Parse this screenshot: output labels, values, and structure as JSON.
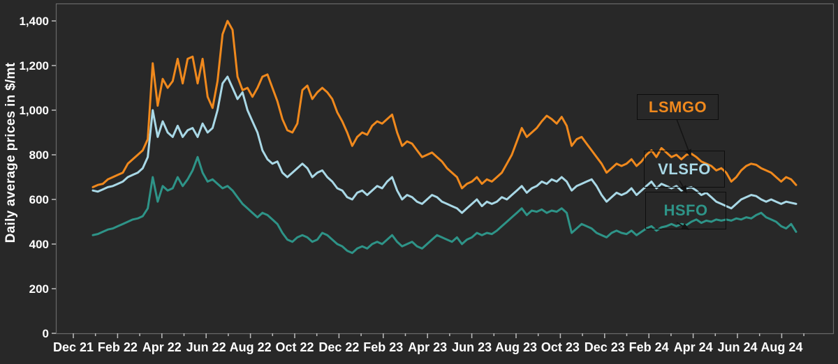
{
  "chart_data": {
    "type": "line",
    "title": "",
    "ylabel": "Daily average prices in $/mt",
    "xlabel": "",
    "ylim": [
      0,
      1400
    ],
    "ytick_step": 200,
    "ytick_labels": [
      "0",
      "200",
      "400",
      "600",
      "800",
      "1,000",
      "1,200",
      "1,400"
    ],
    "grid": "off",
    "legend_position": "inside-right-annotated",
    "x_tick_labels": [
      "Dec 21",
      "Feb 22",
      "Apr 22",
      "Jun 22",
      "Aug 22",
      "Oct 22",
      "Dec 22",
      "Feb 23",
      "Apr 23",
      "Jun 23",
      "Aug 23",
      "Oct 23",
      "Dec 23",
      "Feb 24",
      "Apr 24",
      "Jun 24",
      "Aug 24"
    ],
    "x_unit": "weekly samples from late Dec 2021 to early Sep 2024",
    "series": [
      {
        "name": "HSFO",
        "color": "#2e9488",
        "values": [
          440,
          445,
          455,
          465,
          470,
          480,
          490,
          500,
          510,
          515,
          525,
          560,
          700,
          590,
          660,
          640,
          650,
          700,
          660,
          690,
          730,
          790,
          720,
          680,
          690,
          670,
          650,
          660,
          640,
          610,
          580,
          560,
          540,
          520,
          540,
          530,
          510,
          490,
          450,
          420,
          410,
          430,
          440,
          430,
          410,
          420,
          450,
          440,
          420,
          400,
          390,
          370,
          360,
          380,
          390,
          380,
          400,
          410,
          400,
          420,
          440,
          410,
          390,
          400,
          410,
          390,
          380,
          400,
          420,
          440,
          430,
          420,
          410,
          430,
          400,
          420,
          430,
          450,
          440,
          450,
          445,
          460,
          480,
          500,
          520,
          540,
          560,
          530,
          550,
          545,
          555,
          540,
          550,
          545,
          560,
          540,
          450,
          470,
          490,
          480,
          470,
          450,
          440,
          430,
          450,
          460,
          450,
          445,
          460,
          440,
          455,
          470,
          480,
          460,
          475,
          480,
          490,
          480,
          490,
          485,
          500,
          510,
          495,
          505,
          500,
          510,
          505,
          510,
          505,
          515,
          510,
          520,
          515,
          530,
          540,
          520,
          510,
          500,
          480,
          470,
          490,
          455
        ]
      },
      {
        "name": "VLSFO",
        "color": "#a9d8e6",
        "values": [
          640,
          635,
          645,
          655,
          660,
          670,
          680,
          700,
          710,
          720,
          740,
          790,
          1000,
          880,
          950,
          900,
          880,
          930,
          880,
          910,
          920,
          880,
          940,
          900,
          920,
          1000,
          1120,
          1150,
          1100,
          1050,
          1080,
          1000,
          950,
          900,
          820,
          780,
          760,
          770,
          720,
          700,
          720,
          740,
          760,
          740,
          700,
          720,
          730,
          700,
          680,
          650,
          640,
          610,
          600,
          630,
          640,
          620,
          640,
          660,
          650,
          680,
          700,
          640,
          600,
          620,
          610,
          590,
          580,
          600,
          620,
          610,
          590,
          580,
          570,
          560,
          540,
          560,
          580,
          600,
          570,
          590,
          580,
          590,
          610,
          600,
          620,
          640,
          660,
          630,
          650,
          660,
          680,
          670,
          690,
          680,
          700,
          680,
          640,
          660,
          670,
          680,
          690,
          660,
          620,
          590,
          610,
          630,
          620,
          630,
          650,
          620,
          640,
          660,
          680,
          650,
          670,
          660,
          650,
          660,
          640,
          650,
          655,
          640,
          620,
          630,
          610,
          590,
          580,
          570,
          560,
          580,
          600,
          610,
          620,
          615,
          600,
          590,
          600,
          590,
          580,
          590,
          585,
          580
        ]
      },
      {
        "name": "LSMGO",
        "color": "#f0891d",
        "values": [
          655,
          665,
          670,
          690,
          700,
          710,
          720,
          760,
          780,
          800,
          820,
          870,
          1210,
          1020,
          1140,
          1100,
          1130,
          1230,
          1120,
          1230,
          1240,
          1120,
          1230,
          1060,
          1010,
          1130,
          1340,
          1400,
          1360,
          1150,
          1090,
          1100,
          1060,
          1100,
          1150,
          1160,
          1100,
          1040,
          960,
          910,
          900,
          940,
          1090,
          1110,
          1050,
          1080,
          1100,
          1080,
          1050,
          990,
          950,
          900,
          840,
          880,
          900,
          890,
          930,
          950,
          940,
          960,
          980,
          900,
          840,
          860,
          850,
          820,
          790,
          800,
          810,
          790,
          770,
          740,
          720,
          700,
          650,
          670,
          680,
          700,
          670,
          690,
          680,
          700,
          720,
          760,
          800,
          860,
          920,
          880,
          900,
          920,
          950,
          975,
          960,
          940,
          970,
          930,
          840,
          870,
          880,
          850,
          820,
          790,
          760,
          720,
          740,
          760,
          750,
          760,
          780,
          750,
          770,
          800,
          820,
          790,
          830,
          810,
          790,
          800,
          780,
          800,
          805,
          790,
          770,
          760,
          750,
          730,
          740,
          720,
          680,
          700,
          730,
          750,
          760,
          755,
          740,
          730,
          720,
          700,
          680,
          700,
          690,
          665
        ]
      }
    ],
    "legend_entries": [
      {
        "label": "LSMGO",
        "color": "#f0891d"
      },
      {
        "label": "VLSFO",
        "color": "#a9d8e6"
      },
      {
        "label": "HSFO",
        "color": "#2e9488"
      }
    ]
  },
  "colors": {
    "background": "#282828",
    "plot_border": "#6a6a6a",
    "axis_text": "#ffffff",
    "tick_mark": "#bdbdbd",
    "annotation_line": "#141414"
  }
}
